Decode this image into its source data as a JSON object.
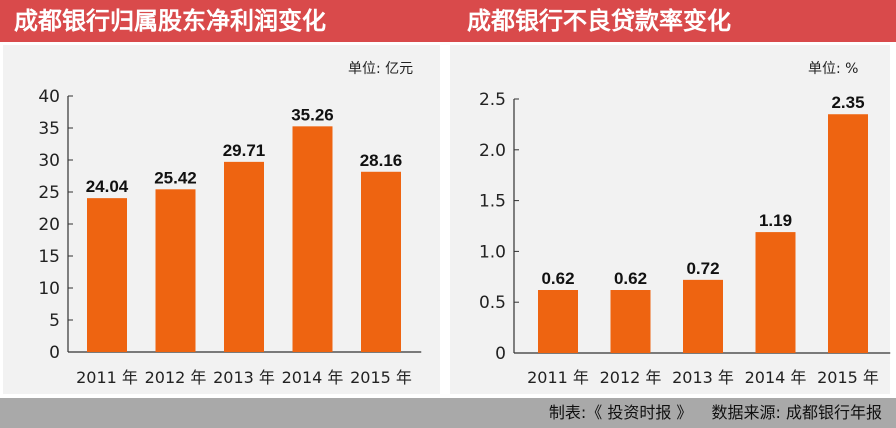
{
  "titles": {
    "left": "成都银行归属股东净利润变化",
    "right": "成都银行不良贷款率变化"
  },
  "units": {
    "left": "单位: 亿元",
    "right": "单位: %"
  },
  "footer": {
    "maker": "制表:《 投资时报 》",
    "source": "数据来源: 成都银行年报"
  },
  "colors": {
    "bar": "#ee6411",
    "banner": "#d94a4b",
    "footer": "#a9a9a9"
  },
  "chart_data": [
    {
      "type": "bar",
      "title": "成都银行归属股东净利润变化",
      "unit": "单位: 亿元",
      "categories": [
        "2011 年",
        "2012 年",
        "2013 年",
        "2014 年",
        "2015 年"
      ],
      "values": [
        24.04,
        25.42,
        29.71,
        35.26,
        28.16
      ],
      "value_labels": [
        "24.04",
        "25.42",
        "29.71",
        "35.26",
        "28.16"
      ],
      "ylim": [
        0,
        40
      ],
      "yticks": [
        "0",
        "5",
        "10",
        "15",
        "20",
        "25",
        "30",
        "35",
        "40"
      ],
      "ytick_values": [
        0,
        5,
        10,
        15,
        20,
        25,
        30,
        35,
        40
      ],
      "grid": false
    },
    {
      "type": "bar",
      "title": "成都银行不良贷款率变化",
      "unit": "单位: %",
      "categories": [
        "2011 年",
        "2012 年",
        "2013 年",
        "2014 年",
        "2015 年"
      ],
      "values": [
        0.62,
        0.62,
        0.72,
        1.19,
        2.35
      ],
      "value_labels": [
        "0.62",
        "0.62",
        "0.72",
        "1.19",
        "2.35"
      ],
      "ylim": [
        0,
        2.5
      ],
      "yticks": [
        "0",
        "0.5",
        "1.0",
        "1.5",
        "2.0",
        "2.5"
      ],
      "ytick_values": [
        0,
        0.5,
        1.0,
        1.5,
        2.0,
        2.5
      ],
      "grid": false
    }
  ]
}
